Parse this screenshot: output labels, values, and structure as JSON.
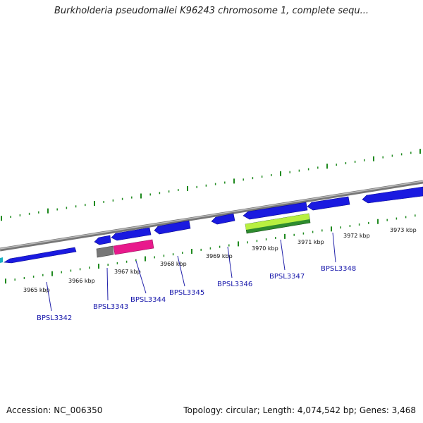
{
  "title": "Burkholderia pseudomallei K96243 chromosome 1, complete sequ...",
  "footer": {
    "accession": "Accession: NC_006350",
    "summary": "Topology: circular; Length: 4,074,542 bp; Genes: 3,468"
  },
  "colors": {
    "backbone": "#8a8a8a",
    "forward_gene": "#1a1ae0",
    "forward_gene_light": "#4a4aff",
    "gray_feature": "#777777",
    "pink_feature": "#e8198c",
    "green_feature": "#2e8b2e",
    "lime_feature": "#b8f040",
    "ticks": "#1f8a1f",
    "label_line": "#2222aa"
  },
  "scale_labels": [
    "3965 kbp",
    "3966 kbp",
    "3967 kbp",
    "3968 kbp",
    "3969 kbp",
    "3970 kbp",
    "3971 kbp",
    "3972 kbp",
    "3973 kbp"
  ],
  "gene_labels": [
    "BPSL3342",
    "BPSL3343",
    "BPSL3344",
    "BPSL3345",
    "BPSL3346",
    "BPSL3347",
    "BPSL3348"
  ]
}
